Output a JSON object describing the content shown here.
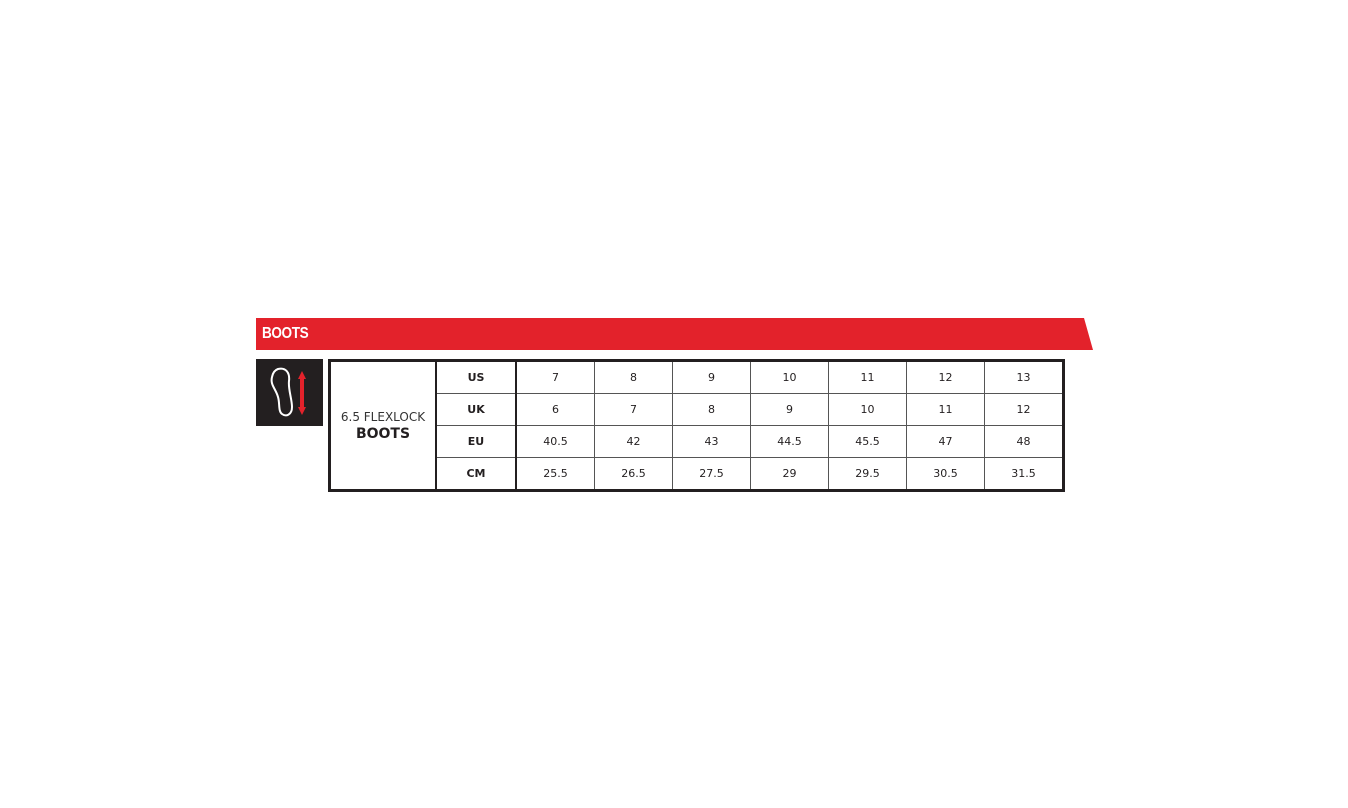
{
  "banner": {
    "title": "BOOTS",
    "color": "#e3222b"
  },
  "icon": {
    "name": "foot-length-icon",
    "accent": "#e3222b"
  },
  "table": {
    "name_line1": "6.5 FLEXLOCK",
    "name_line2": "BOOTS",
    "rows": [
      {
        "label": "US",
        "values": [
          "7",
          "8",
          "9",
          "10",
          "11",
          "12",
          "13"
        ]
      },
      {
        "label": "UK",
        "values": [
          "6",
          "7",
          "8",
          "9",
          "10",
          "11",
          "12"
        ]
      },
      {
        "label": "EU",
        "values": [
          "40.5",
          "42",
          "43",
          "44.5",
          "45.5",
          "47",
          "48"
        ]
      },
      {
        "label": "CM",
        "values": [
          "25.5",
          "26.5",
          "27.5",
          "29",
          "29.5",
          "30.5",
          "31.5"
        ]
      }
    ]
  }
}
